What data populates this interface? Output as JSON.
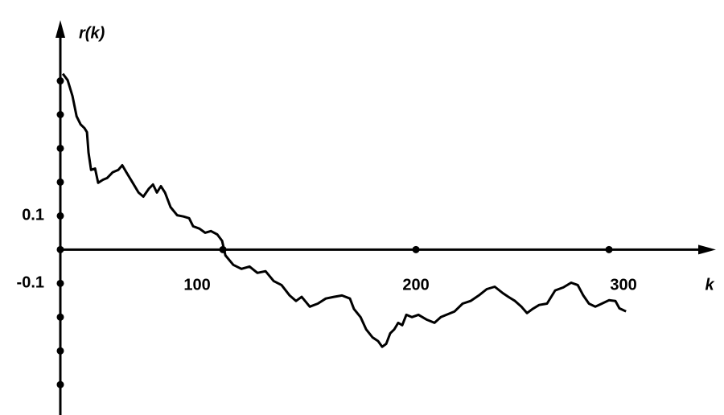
{
  "chart_data": {
    "type": "line",
    "ylabel": "r(k)",
    "xlabel": "k",
    "xlim": [
      15.8,
      355.4
    ],
    "ylim": [
      -0.49,
      0.68
    ],
    "xticks": [
      100,
      200,
      300
    ],
    "yticks": [
      {
        "value": 0.5,
        "label": null
      },
      {
        "value": 0.4,
        "label": null
      },
      {
        "value": 0.3,
        "label": null
      },
      {
        "value": 0.2,
        "label": null
      },
      0.1,
      {
        "value": 0,
        "label": null
      },
      -0.1,
      {
        "value": -0.2,
        "label": null
      },
      {
        "value": -0.3,
        "label": null
      },
      {
        "value": -0.4,
        "label": null
      }
    ],
    "color": "#000000",
    "x": [
      17.1,
      19.6,
      22.1,
      24.2,
      26.3,
      28.3,
      29.6,
      30.4,
      31.7,
      33.8,
      35.4,
      37.9,
      40,
      42.9,
      45.8,
      47.9,
      50,
      53.3,
      56.3,
      58.8,
      61.7,
      63.8,
      65.8,
      67.9,
      70,
      72.9,
      76.3,
      79.6,
      82.5,
      84.6,
      87.9,
      90.8,
      93.8,
      97.1,
      99.6,
      101.3,
      105.4,
      109.6,
      113.8,
      117.9,
      122.1,
      126.3,
      130.4,
      134.6,
      137.9,
      140.8,
      145,
      149.2,
      153.3,
      157.5,
      161.7,
      165.8,
      167.9,
      171.3,
      174.2,
      177.5,
      180.4,
      182.5,
      184.6,
      186.7,
      188.8,
      190.8,
      192.9,
      195,
      197.9,
      201.3,
      205.4,
      209.6,
      212.9,
      215.8,
      220,
      224.2,
      228.3,
      232.5,
      236.7,
      240.8,
      245,
      247.9,
      251.3,
      254.6,
      257.5,
      260.4,
      263.8,
      267.9,
      272.1,
      276.3,
      280.4,
      283.8,
      286.7,
      289.6,
      292.9,
      296.3,
      300,
      303.3,
      305.4,
      308.8
    ],
    "values": [
      0.521,
      0.502,
      0.455,
      0.395,
      0.371,
      0.36,
      0.348,
      0.288,
      0.236,
      0.24,
      0.198,
      0.207,
      0.212,
      0.229,
      0.236,
      0.25,
      0.229,
      0.198,
      0.169,
      0.157,
      0.181,
      0.193,
      0.169,
      0.188,
      0.169,
      0.126,
      0.102,
      0.098,
      0.093,
      0.069,
      0.062,
      0.05,
      0.055,
      0.045,
      0.026,
      -0.017,
      -0.045,
      -0.057,
      -0.05,
      -0.069,
      -0.064,
      -0.093,
      -0.105,
      -0.136,
      -0.152,
      -0.14,
      -0.169,
      -0.16,
      -0.145,
      -0.14,
      -0.136,
      -0.145,
      -0.176,
      -0.2,
      -0.236,
      -0.26,
      -0.271,
      -0.288,
      -0.279,
      -0.248,
      -0.236,
      -0.217,
      -0.224,
      -0.193,
      -0.2,
      -0.193,
      -0.207,
      -0.217,
      -0.2,
      -0.193,
      -0.183,
      -0.16,
      -0.152,
      -0.136,
      -0.117,
      -0.11,
      -0.129,
      -0.14,
      -0.152,
      -0.169,
      -0.188,
      -0.176,
      -0.164,
      -0.16,
      -0.121,
      -0.112,
      -0.098,
      -0.105,
      -0.136,
      -0.16,
      -0.169,
      -0.16,
      -0.15,
      -0.152,
      -0.174,
      -0.183
    ]
  }
}
